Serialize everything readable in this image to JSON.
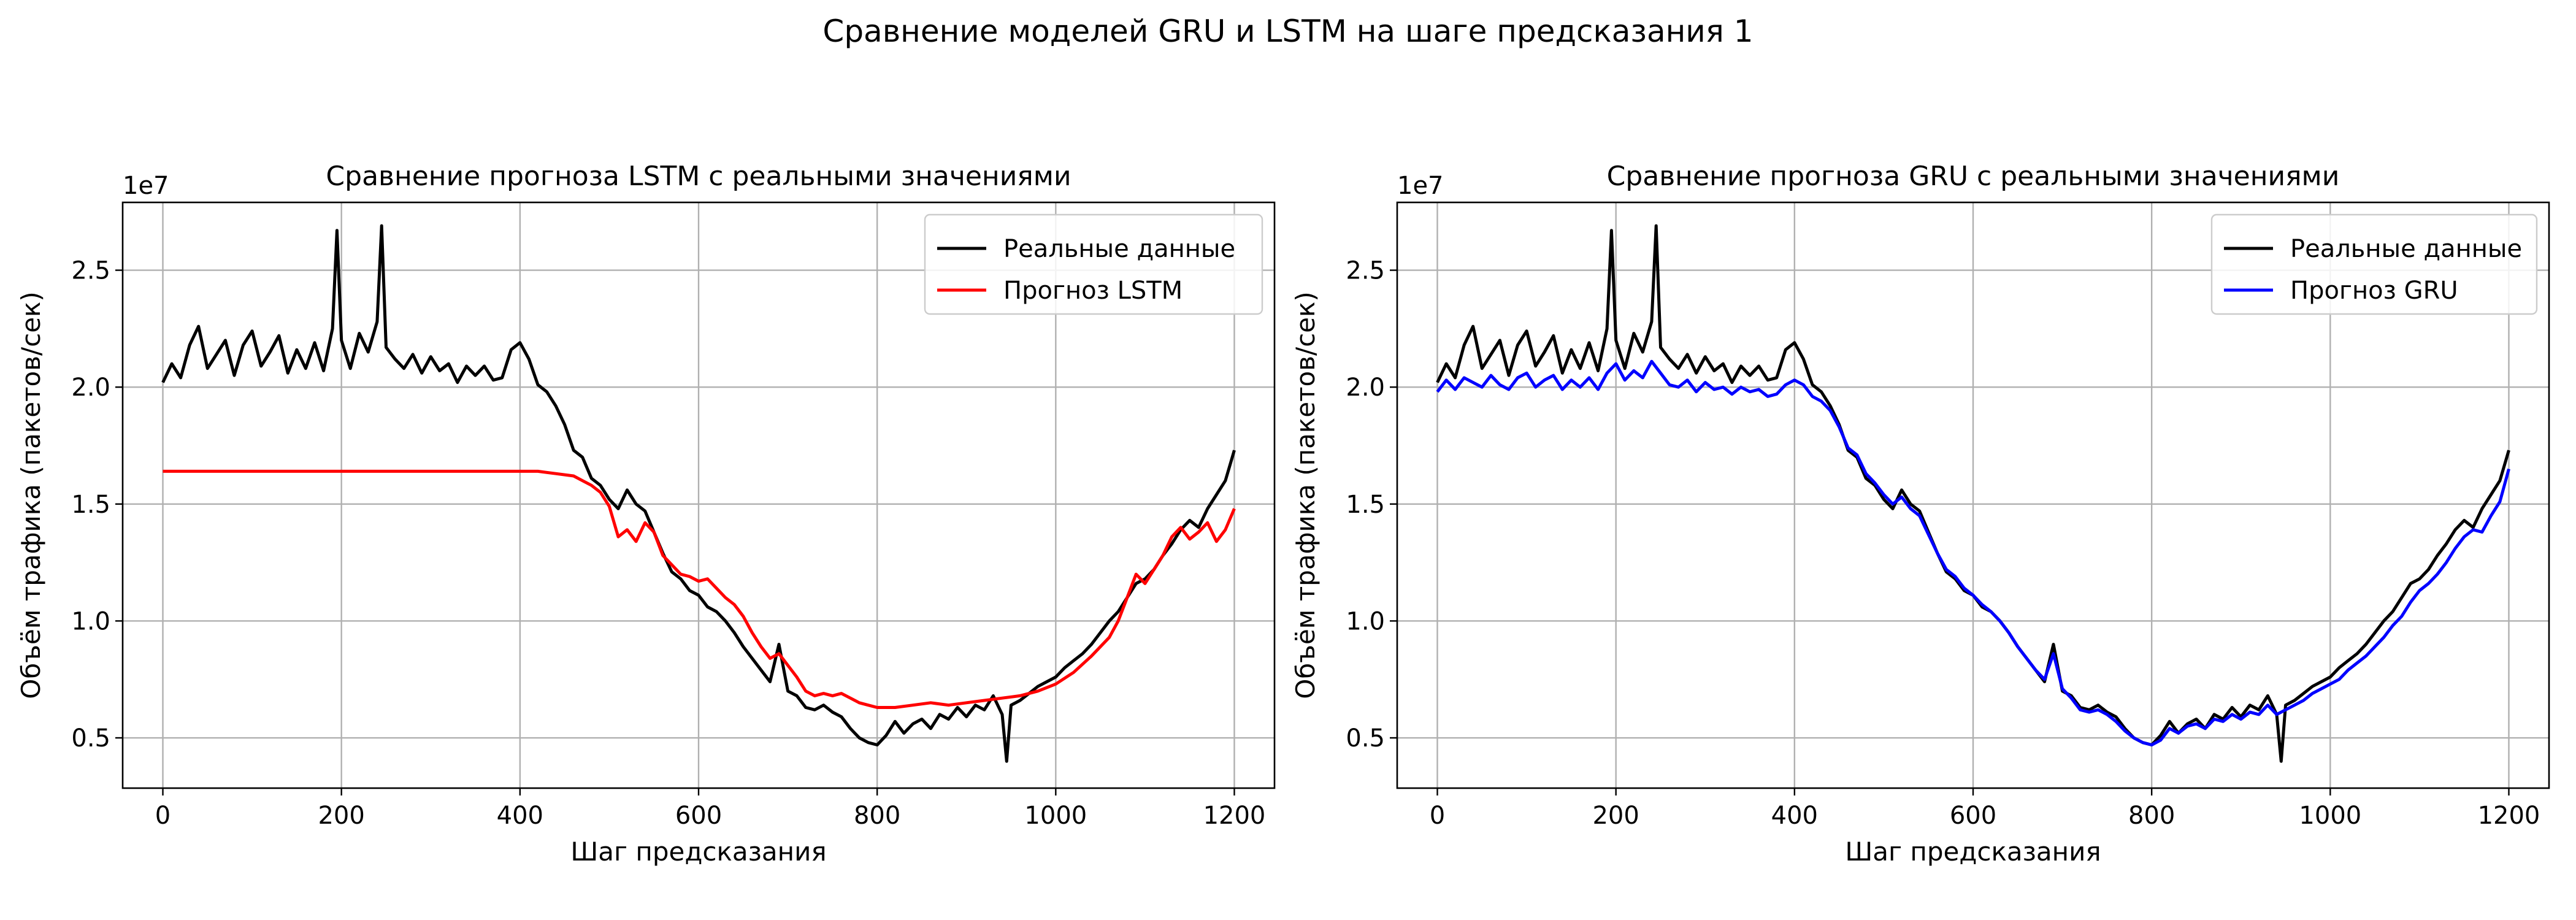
{
  "suptitle": "Сравнение моделей GRU и LSTM на шаге предсказания 1",
  "chart_data": [
    {
      "type": "line",
      "title": "Сравнение прогноза LSTM с реальными значениями",
      "xlabel": "Шаг предсказания",
      "ylabel": "Объём трафика (пакетов/сек)",
      "y_offset_label": "1e7",
      "xlim": [
        -45,
        1245
      ],
      "ylim": [
        2.85,
        27.9
      ],
      "y_scale_factor": 1000000,
      "xticks": [
        0,
        200,
        400,
        600,
        800,
        1000,
        1200
      ],
      "xtick_labels": [
        "0",
        "200",
        "400",
        "600",
        "800",
        "1000",
        "1200"
      ],
      "yticks": [
        5,
        10,
        15,
        20,
        25
      ],
      "ytick_labels": [
        "0.5",
        "1.0",
        "1.5",
        "2.0",
        "2.5"
      ],
      "grid": true,
      "legend_position": "top-right",
      "series": [
        {
          "name": "Реальные данные",
          "color": "#000000",
          "x": [
            0,
            10,
            20,
            30,
            40,
            50,
            60,
            70,
            80,
            90,
            100,
            110,
            120,
            130,
            140,
            150,
            160,
            170,
            180,
            190,
            195,
            200,
            210,
            220,
            230,
            240,
            245,
            250,
            260,
            270,
            280,
            290,
            300,
            310,
            320,
            330,
            340,
            350,
            360,
            370,
            380,
            390,
            400,
            410,
            420,
            430,
            440,
            450,
            460,
            470,
            480,
            490,
            500,
            510,
            520,
            530,
            540,
            550,
            560,
            570,
            580,
            590,
            600,
            610,
            620,
            630,
            640,
            650,
            660,
            670,
            680,
            690,
            700,
            710,
            720,
            730,
            740,
            750,
            760,
            770,
            780,
            790,
            800,
            810,
            820,
            830,
            840,
            850,
            860,
            870,
            880,
            890,
            900,
            910,
            920,
            930,
            940,
            945,
            950,
            960,
            970,
            980,
            990,
            1000,
            1010,
            1020,
            1030,
            1040,
            1050,
            1060,
            1070,
            1080,
            1090,
            1100,
            1110,
            1120,
            1130,
            1140,
            1150,
            1160,
            1170,
            1180,
            1190,
            1200
          ],
          "values": [
            20.2,
            21.0,
            20.4,
            21.8,
            22.6,
            20.8,
            21.4,
            22.0,
            20.5,
            21.8,
            22.4,
            20.9,
            21.5,
            22.2,
            20.6,
            21.6,
            20.8,
            21.9,
            20.7,
            22.5,
            26.7,
            22.0,
            20.8,
            22.3,
            21.5,
            22.8,
            26.9,
            21.7,
            21.2,
            20.8,
            21.4,
            20.6,
            21.3,
            20.7,
            21.0,
            20.2,
            20.9,
            20.5,
            20.9,
            20.3,
            20.4,
            21.6,
            21.9,
            21.2,
            20.1,
            19.8,
            19.2,
            18.4,
            17.3,
            17.0,
            16.1,
            15.8,
            15.2,
            14.8,
            15.6,
            15.0,
            14.7,
            13.8,
            12.9,
            12.1,
            11.8,
            11.3,
            11.1,
            10.6,
            10.4,
            10.0,
            9.5,
            8.9,
            8.4,
            7.9,
            7.4,
            9.0,
            7.0,
            6.8,
            6.3,
            6.2,
            6.4,
            6.1,
            5.9,
            5.4,
            5.0,
            4.8,
            4.7,
            5.1,
            5.7,
            5.2,
            5.6,
            5.8,
            5.4,
            6.0,
            5.8,
            6.3,
            5.9,
            6.4,
            6.2,
            6.8,
            6.0,
            4.0,
            6.4,
            6.6,
            6.9,
            7.2,
            7.4,
            7.6,
            8.0,
            8.3,
            8.6,
            9.0,
            9.5,
            10.0,
            10.4,
            11.0,
            11.6,
            11.8,
            12.2,
            12.8,
            13.3,
            13.9,
            14.3,
            14.0,
            14.8,
            15.4,
            16.0,
            17.3
          ]
        },
        {
          "name": "Прогноз LSTM",
          "color": "#ff0000",
          "x": [
            0,
            50,
            100,
            150,
            200,
            250,
            300,
            350,
            400,
            420,
            440,
            460,
            470,
            480,
            490,
            500,
            510,
            520,
            530,
            540,
            550,
            560,
            570,
            580,
            590,
            600,
            610,
            620,
            630,
            640,
            650,
            660,
            670,
            680,
            690,
            700,
            710,
            720,
            730,
            740,
            750,
            760,
            770,
            780,
            790,
            800,
            820,
            840,
            860,
            880,
            900,
            920,
            940,
            960,
            980,
            1000,
            1020,
            1040,
            1060,
            1070,
            1080,
            1090,
            1100,
            1110,
            1120,
            1130,
            1140,
            1150,
            1160,
            1170,
            1180,
            1190,
            1200
          ],
          "values": [
            16.4,
            16.4,
            16.4,
            16.4,
            16.4,
            16.4,
            16.4,
            16.4,
            16.4,
            16.4,
            16.3,
            16.2,
            16.0,
            15.8,
            15.5,
            14.9,
            13.6,
            13.9,
            13.4,
            14.2,
            13.8,
            12.8,
            12.4,
            12.0,
            11.9,
            11.7,
            11.8,
            11.4,
            11.0,
            10.7,
            10.2,
            9.5,
            8.9,
            8.4,
            8.6,
            8.1,
            7.6,
            7.0,
            6.8,
            6.9,
            6.8,
            6.9,
            6.7,
            6.5,
            6.4,
            6.3,
            6.3,
            6.4,
            6.5,
            6.4,
            6.5,
            6.6,
            6.7,
            6.8,
            7.0,
            7.3,
            7.8,
            8.5,
            9.3,
            10.0,
            11.0,
            12.0,
            11.6,
            12.2,
            12.8,
            13.6,
            14.0,
            13.5,
            13.8,
            14.2,
            13.4,
            13.9,
            14.8
          ]
        }
      ]
    },
    {
      "type": "line",
      "title": "Сравнение прогноза GRU с реальными значениями",
      "xlabel": "Шаг предсказания",
      "ylabel": "Объём трафика (пакетов/сек)",
      "y_offset_label": "1e7",
      "xlim": [
        -45,
        1245
      ],
      "ylim": [
        2.85,
        27.9
      ],
      "y_scale_factor": 1000000,
      "xticks": [
        0,
        200,
        400,
        600,
        800,
        1000,
        1200
      ],
      "xtick_labels": [
        "0",
        "200",
        "400",
        "600",
        "800",
        "1000",
        "1200"
      ],
      "yticks": [
        5,
        10,
        15,
        20,
        25
      ],
      "ytick_labels": [
        "0.5",
        "1.0",
        "1.5",
        "2.0",
        "2.5"
      ],
      "grid": true,
      "legend_position": "top-right",
      "series": [
        {
          "name": "Реальные данные",
          "color": "#000000",
          "x": [
            0,
            10,
            20,
            30,
            40,
            50,
            60,
            70,
            80,
            90,
            100,
            110,
            120,
            130,
            140,
            150,
            160,
            170,
            180,
            190,
            195,
            200,
            210,
            220,
            230,
            240,
            245,
            250,
            260,
            270,
            280,
            290,
            300,
            310,
            320,
            330,
            340,
            350,
            360,
            370,
            380,
            390,
            400,
            410,
            420,
            430,
            440,
            450,
            460,
            470,
            480,
            490,
            500,
            510,
            520,
            530,
            540,
            550,
            560,
            570,
            580,
            590,
            600,
            610,
            620,
            630,
            640,
            650,
            660,
            670,
            680,
            690,
            700,
            710,
            720,
            730,
            740,
            750,
            760,
            770,
            780,
            790,
            800,
            810,
            820,
            830,
            840,
            850,
            860,
            870,
            880,
            890,
            900,
            910,
            920,
            930,
            940,
            945,
            950,
            960,
            970,
            980,
            990,
            1000,
            1010,
            1020,
            1030,
            1040,
            1050,
            1060,
            1070,
            1080,
            1090,
            1100,
            1110,
            1120,
            1130,
            1140,
            1150,
            1160,
            1170,
            1180,
            1190,
            1200
          ],
          "values": [
            20.2,
            21.0,
            20.4,
            21.8,
            22.6,
            20.8,
            21.4,
            22.0,
            20.5,
            21.8,
            22.4,
            20.9,
            21.5,
            22.2,
            20.6,
            21.6,
            20.8,
            21.9,
            20.7,
            22.5,
            26.7,
            22.0,
            20.8,
            22.3,
            21.5,
            22.8,
            26.9,
            21.7,
            21.2,
            20.8,
            21.4,
            20.6,
            21.3,
            20.7,
            21.0,
            20.2,
            20.9,
            20.5,
            20.9,
            20.3,
            20.4,
            21.6,
            21.9,
            21.2,
            20.1,
            19.8,
            19.2,
            18.4,
            17.3,
            17.0,
            16.1,
            15.8,
            15.2,
            14.8,
            15.6,
            15.0,
            14.7,
            13.8,
            12.9,
            12.1,
            11.8,
            11.3,
            11.1,
            10.6,
            10.4,
            10.0,
            9.5,
            8.9,
            8.4,
            7.9,
            7.4,
            9.0,
            7.0,
            6.8,
            6.3,
            6.2,
            6.4,
            6.1,
            5.9,
            5.4,
            5.0,
            4.8,
            4.7,
            5.1,
            5.7,
            5.2,
            5.6,
            5.8,
            5.4,
            6.0,
            5.8,
            6.3,
            5.9,
            6.4,
            6.2,
            6.8,
            6.0,
            4.0,
            6.4,
            6.6,
            6.9,
            7.2,
            7.4,
            7.6,
            8.0,
            8.3,
            8.6,
            9.0,
            9.5,
            10.0,
            10.4,
            11.0,
            11.6,
            11.8,
            12.2,
            12.8,
            13.3,
            13.9,
            14.3,
            14.0,
            14.8,
            15.4,
            16.0,
            17.3
          ]
        },
        {
          "name": "Прогноз GRU",
          "color": "#0000ff",
          "x": [
            0,
            10,
            20,
            30,
            40,
            50,
            60,
            70,
            80,
            90,
            100,
            110,
            120,
            130,
            140,
            150,
            160,
            170,
            180,
            190,
            200,
            210,
            220,
            230,
            240,
            250,
            260,
            270,
            280,
            290,
            300,
            310,
            320,
            330,
            340,
            350,
            360,
            370,
            380,
            390,
            400,
            410,
            420,
            430,
            440,
            450,
            460,
            470,
            480,
            490,
            500,
            510,
            520,
            530,
            540,
            550,
            560,
            570,
            580,
            590,
            600,
            610,
            620,
            630,
            640,
            650,
            660,
            670,
            680,
            690,
            700,
            710,
            720,
            730,
            740,
            750,
            760,
            770,
            780,
            790,
            800,
            810,
            820,
            830,
            840,
            850,
            860,
            870,
            880,
            890,
            900,
            910,
            920,
            930,
            940,
            950,
            960,
            970,
            980,
            990,
            1000,
            1010,
            1020,
            1030,
            1040,
            1050,
            1060,
            1070,
            1080,
            1090,
            1100,
            1110,
            1120,
            1130,
            1140,
            1150,
            1160,
            1170,
            1180,
            1190,
            1200
          ],
          "values": [
            19.8,
            20.3,
            19.9,
            20.4,
            20.2,
            20.0,
            20.5,
            20.1,
            19.9,
            20.4,
            20.6,
            20.0,
            20.3,
            20.5,
            19.9,
            20.3,
            20.0,
            20.4,
            19.9,
            20.6,
            21.0,
            20.3,
            20.7,
            20.4,
            21.1,
            20.6,
            20.1,
            20.0,
            20.3,
            19.8,
            20.2,
            19.9,
            20.0,
            19.7,
            20.0,
            19.8,
            19.9,
            19.6,
            19.7,
            20.1,
            20.3,
            20.1,
            19.6,
            19.4,
            19.0,
            18.3,
            17.4,
            17.1,
            16.3,
            15.9,
            15.4,
            15.0,
            15.3,
            14.8,
            14.5,
            13.7,
            12.9,
            12.2,
            11.9,
            11.4,
            11.1,
            10.7,
            10.4,
            10.0,
            9.5,
            8.9,
            8.4,
            7.9,
            7.5,
            8.6,
            7.1,
            6.7,
            6.2,
            6.1,
            6.2,
            6.0,
            5.7,
            5.3,
            5.0,
            4.8,
            4.7,
            4.9,
            5.4,
            5.2,
            5.5,
            5.6,
            5.4,
            5.8,
            5.7,
            6.0,
            5.8,
            6.1,
            6.0,
            6.4,
            6.0,
            6.2,
            6.4,
            6.6,
            6.9,
            7.1,
            7.3,
            7.5,
            7.9,
            8.2,
            8.5,
            8.9,
            9.3,
            9.8,
            10.2,
            10.8,
            11.3,
            11.6,
            12.0,
            12.5,
            13.1,
            13.6,
            13.9,
            13.8,
            14.5,
            15.1,
            16.5
          ]
        }
      ]
    }
  ]
}
